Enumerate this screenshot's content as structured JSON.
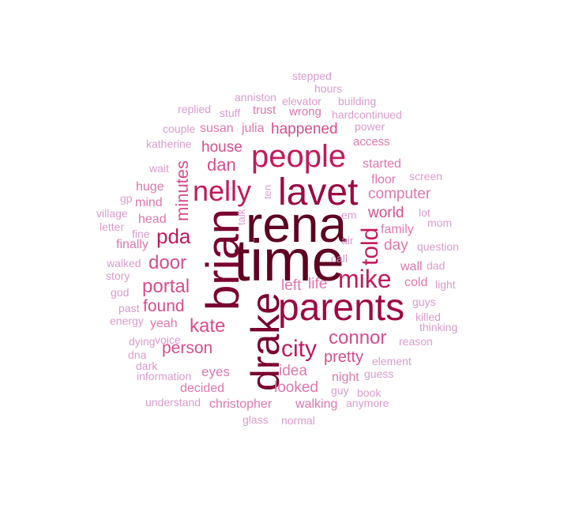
{
  "palette": {
    "c1": "#5e0022",
    "c2": "#7a0030",
    "c3": "#9c0a45",
    "c4": "#c21a5c",
    "c5": "#d64e8e",
    "c6": "#e077ad",
    "c7": "#d99ccc"
  },
  "words": [
    {
      "text": "time",
      "fs": 74,
      "color": "c1",
      "rot": false
    },
    {
      "text": "rena",
      "fs": 64,
      "color": "c1",
      "rot": false
    },
    {
      "text": "brian",
      "fs": 58,
      "color": "c2",
      "rot": true
    },
    {
      "text": "drake",
      "fs": 50,
      "color": "c2",
      "rot": true
    },
    {
      "text": "parents",
      "fs": 48,
      "color": "c3",
      "rot": false
    },
    {
      "text": "lavet",
      "fs": 48,
      "color": "c3",
      "rot": false
    },
    {
      "text": "people",
      "fs": 40,
      "color": "c4",
      "rot": false
    },
    {
      "text": "nelly",
      "fs": 36,
      "color": "c4",
      "rot": false
    },
    {
      "text": "mike",
      "fs": 32,
      "color": "c4",
      "rot": false
    },
    {
      "text": "told",
      "fs": 30,
      "color": "c4",
      "rot": true
    },
    {
      "text": "city",
      "fs": 30,
      "color": "c4",
      "rot": false
    },
    {
      "text": "pda",
      "fs": 26,
      "color": "c4",
      "rot": false
    },
    {
      "text": "door",
      "fs": 24,
      "color": "c5",
      "rot": false
    },
    {
      "text": "portal",
      "fs": 24,
      "color": "c5",
      "rot": false
    },
    {
      "text": "kate",
      "fs": 24,
      "color": "c5",
      "rot": false
    },
    {
      "text": "connor",
      "fs": 24,
      "color": "c5",
      "rot": false
    },
    {
      "text": "minutes",
      "fs": 22,
      "color": "c5",
      "rot": true
    },
    {
      "text": "dan",
      "fs": 22,
      "color": "c5",
      "rot": false
    },
    {
      "text": "found",
      "fs": 21,
      "color": "c5",
      "rot": false
    },
    {
      "text": "person",
      "fs": 21,
      "color": "c5",
      "rot": false
    },
    {
      "text": "pretty",
      "fs": 20,
      "color": "c5",
      "rot": false
    },
    {
      "text": "house",
      "fs": 19,
      "color": "c5",
      "rot": false
    },
    {
      "text": "happened",
      "fs": 19,
      "color": "c5",
      "rot": false
    },
    {
      "text": "world",
      "fs": 19,
      "color": "c5",
      "rot": false
    },
    {
      "text": "computer",
      "fs": 19,
      "color": "c6",
      "rot": false
    },
    {
      "text": "idea",
      "fs": 19,
      "color": "c6",
      "rot": false
    },
    {
      "text": "looked",
      "fs": 19,
      "color": "c6",
      "rot": false
    },
    {
      "text": "left",
      "fs": 19,
      "color": "c6",
      "rot": false
    },
    {
      "text": "life",
      "fs": 19,
      "color": "c6",
      "rot": false
    },
    {
      "text": "day",
      "fs": 19,
      "color": "c6",
      "rot": false
    },
    {
      "text": "eyes",
      "fs": 17,
      "color": "c6",
      "rot": false
    },
    {
      "text": "yeah",
      "fs": 16,
      "color": "c6",
      "rot": false
    },
    {
      "text": "decided",
      "fs": 16,
      "color": "c6",
      "rot": false
    },
    {
      "text": "christopher",
      "fs": 16,
      "color": "c6",
      "rot": false
    },
    {
      "text": "walking",
      "fs": 16,
      "color": "c6",
      "rot": false
    },
    {
      "text": "night",
      "fs": 16,
      "color": "c6",
      "rot": false
    },
    {
      "text": "started",
      "fs": 16,
      "color": "c6",
      "rot": false
    },
    {
      "text": "floor",
      "fs": 16,
      "color": "c6",
      "rot": false
    },
    {
      "text": "family",
      "fs": 16,
      "color": "c6",
      "rot": false
    },
    {
      "text": "cold",
      "fs": 16,
      "color": "c6",
      "rot": false
    },
    {
      "text": "wall",
      "fs": 16,
      "color": "c6",
      "rot": false
    },
    {
      "text": "huge",
      "fs": 16,
      "color": "c6",
      "rot": false
    },
    {
      "text": "mind",
      "fs": 16,
      "color": "c6",
      "rot": false
    },
    {
      "text": "head",
      "fs": 16,
      "color": "c6",
      "rot": false
    },
    {
      "text": "finally",
      "fs": 16,
      "color": "c6",
      "rot": false
    },
    {
      "text": "susan",
      "fs": 16,
      "color": "c6",
      "rot": false
    },
    {
      "text": "julia",
      "fs": 16,
      "color": "c6",
      "rot": false
    },
    {
      "text": "trust",
      "fs": 15,
      "color": "c6",
      "rot": false
    },
    {
      "text": "wrong",
      "fs": 15,
      "color": "c6",
      "rot": false
    },
    {
      "text": "access",
      "fs": 15,
      "color": "c6",
      "rot": false
    },
    {
      "text": "stepped",
      "fs": 14,
      "color": "c7",
      "rot": false
    },
    {
      "text": "hours",
      "fs": 14,
      "color": "c7",
      "rot": false
    },
    {
      "text": "anniston",
      "fs": 14,
      "color": "c7",
      "rot": false
    },
    {
      "text": "elevator",
      "fs": 14,
      "color": "c7",
      "rot": false
    },
    {
      "text": "building",
      "fs": 14,
      "color": "c7",
      "rot": false
    },
    {
      "text": "replied",
      "fs": 14,
      "color": "c7",
      "rot": false
    },
    {
      "text": "stuff",
      "fs": 14,
      "color": "c7",
      "rot": false
    },
    {
      "text": "hardcontinued",
      "fs": 14,
      "color": "c7",
      "rot": false
    },
    {
      "text": "couple",
      "fs": 14,
      "color": "c7",
      "rot": false
    },
    {
      "text": "power",
      "fs": 14,
      "color": "c7",
      "rot": false
    },
    {
      "text": "katherine",
      "fs": 14,
      "color": "c7",
      "rot": false
    },
    {
      "text": "wait",
      "fs": 14,
      "color": "c7",
      "rot": false
    },
    {
      "text": "screen",
      "fs": 14,
      "color": "c7",
      "rot": false
    },
    {
      "text": "gp",
      "fs": 14,
      "color": "c7",
      "rot": false
    },
    {
      "text": "village",
      "fs": 14,
      "color": "c7",
      "rot": false
    },
    {
      "text": "letter",
      "fs": 14,
      "color": "c7",
      "rot": false
    },
    {
      "text": "fine",
      "fs": 14,
      "color": "c7",
      "rot": false
    },
    {
      "text": "lot",
      "fs": 14,
      "color": "c7",
      "rot": false
    },
    {
      "text": "mom",
      "fs": 14,
      "color": "c7",
      "rot": false
    },
    {
      "text": "em",
      "fs": 14,
      "color": "c7",
      "rot": false
    },
    {
      "text": "air",
      "fs": 14,
      "color": "c7",
      "rot": false
    },
    {
      "text": "question",
      "fs": 14,
      "color": "c7",
      "rot": false
    },
    {
      "text": "walked",
      "fs": 14,
      "color": "c7",
      "rot": false
    },
    {
      "text": "call",
      "fs": 14,
      "color": "c7",
      "rot": false
    },
    {
      "text": "dad",
      "fs": 14,
      "color": "c7",
      "rot": false
    },
    {
      "text": "story",
      "fs": 14,
      "color": "c7",
      "rot": false
    },
    {
      "text": "light",
      "fs": 14,
      "color": "c7",
      "rot": false
    },
    {
      "text": "god",
      "fs": 14,
      "color": "c7",
      "rot": false
    },
    {
      "text": "past",
      "fs": 14,
      "color": "c7",
      "rot": false
    },
    {
      "text": "guys",
      "fs": 14,
      "color": "c7",
      "rot": false
    },
    {
      "text": "energy",
      "fs": 14,
      "color": "c7",
      "rot": false
    },
    {
      "text": "killed",
      "fs": 14,
      "color": "c7",
      "rot": false
    },
    {
      "text": "thinking",
      "fs": 14,
      "color": "c7",
      "rot": false
    },
    {
      "text": "dying",
      "fs": 14,
      "color": "c7",
      "rot": false
    },
    {
      "text": "voice",
      "fs": 14,
      "color": "c7",
      "rot": false
    },
    {
      "text": "reason",
      "fs": 14,
      "color": "c7",
      "rot": false
    },
    {
      "text": "dna",
      "fs": 14,
      "color": "c7",
      "rot": false
    },
    {
      "text": "element",
      "fs": 14,
      "color": "c7",
      "rot": false
    },
    {
      "text": "dark",
      "fs": 14,
      "color": "c7",
      "rot": false
    },
    {
      "text": "guess",
      "fs": 14,
      "color": "c7",
      "rot": false
    },
    {
      "text": "information",
      "fs": 14,
      "color": "c7",
      "rot": false
    },
    {
      "text": "guy",
      "fs": 14,
      "color": "c7",
      "rot": false
    },
    {
      "text": "book",
      "fs": 14,
      "color": "c7",
      "rot": false
    },
    {
      "text": "understand",
      "fs": 14,
      "color": "c7",
      "rot": false
    },
    {
      "text": "anymore",
      "fs": 14,
      "color": "c7",
      "rot": false
    },
    {
      "text": "glass",
      "fs": 14,
      "color": "c7",
      "rot": false
    },
    {
      "text": "normal",
      "fs": 14,
      "color": "c7",
      "rot": false
    },
    {
      "text": "talk",
      "fs": 13,
      "color": "c7",
      "rot": true
    },
    {
      "text": "ten",
      "fs": 13,
      "color": "c7",
      "rot": true
    }
  ]
}
